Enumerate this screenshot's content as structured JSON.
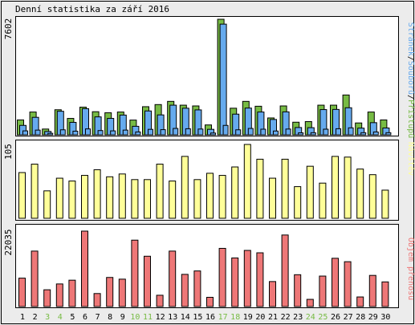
{
  "title": "Denní statistika za září 2016",
  "colors": {
    "background": "#ececec",
    "panel": "#ffffff",
    "border": "#000000",
    "pages": "#66aaee",
    "files": "#77bb44",
    "visits": "#ffff99",
    "traffic": "#ee7777",
    "weekend_label": "#77bb44",
    "weekday_label": "#000000"
  },
  "chart_data": [
    {
      "type": "bar",
      "panel": "top",
      "ymax_label": "7602",
      "ylim": [
        0,
        7602
      ],
      "legend": {
        "placement": "right",
        "separator": "/",
        "items": [
          {
            "text": "Stránek",
            "color": "#66aaee"
          },
          {
            "text": "Souborů",
            "color": "#66aaee"
          },
          {
            "text": "Přístupů",
            "color": "#77bb44"
          }
        ]
      },
      "categories": [
        "1",
        "2",
        "3",
        "4",
        "5",
        "6",
        "7",
        "8",
        "9",
        "10",
        "11",
        "12",
        "13",
        "14",
        "15",
        "16",
        "17",
        "18",
        "19",
        "20",
        "21",
        "22",
        "23",
        "24",
        "25",
        "26",
        "27",
        "28",
        "29",
        "30"
      ],
      "series": [
        {
          "name": "Přístupů",
          "color": "#77bb44",
          "values": [
            980,
            1500,
            380,
            1650,
            1080,
            1820,
            1520,
            1450,
            1500,
            970,
            1850,
            1990,
            2200,
            1950,
            1900,
            650,
            7602,
            1750,
            2200,
            1880,
            1110,
            1900,
            830,
            870,
            1950,
            1950,
            2620,
            780,
            1500,
            980
          ]
        },
        {
          "name": "Souborů",
          "color": "#66aaee",
          "values": [
            620,
            1150,
            220,
            1550,
            820,
            1720,
            1180,
            1080,
            1300,
            560,
            1570,
            1310,
            1950,
            1750,
            1640,
            360,
            7280,
            1360,
            1760,
            1500,
            1010,
            1510,
            480,
            470,
            1660,
            1670,
            1780,
            440,
            800,
            450
          ]
        },
        {
          "name": "Stránek",
          "color": "#66aaee",
          "values": [
            260,
            310,
            100,
            330,
            240,
            390,
            280,
            260,
            310,
            190,
            360,
            340,
            420,
            400,
            380,
            120,
            620,
            330,
            420,
            370,
            250,
            380,
            130,
            140,
            370,
            400,
            460,
            140,
            190,
            140
          ]
        }
      ]
    },
    {
      "type": "bar",
      "panel": "middle",
      "ymax_label": "105",
      "ylim": [
        0,
        105
      ],
      "legend": {
        "placement": "right",
        "items": [
          {
            "text": "Návštěv",
            "color": "#ffff99"
          }
        ]
      },
      "categories": [
        "1",
        "2",
        "3",
        "4",
        "5",
        "6",
        "7",
        "8",
        "9",
        "10",
        "11",
        "12",
        "13",
        "14",
        "15",
        "16",
        "17",
        "18",
        "19",
        "20",
        "21",
        "22",
        "23",
        "24",
        "25",
        "26",
        "27",
        "28",
        "29",
        "30"
      ],
      "series": [
        {
          "name": "Návštěv",
          "color": "#ffff99",
          "values": [
            65,
            77,
            39,
            57,
            53,
            61,
            69,
            59,
            63,
            55,
            55,
            77,
            53,
            88,
            55,
            64,
            61,
            73,
            105,
            84,
            57,
            84,
            45,
            74,
            50,
            88,
            87,
            70,
            62,
            40
          ]
        }
      ]
    },
    {
      "type": "bar",
      "panel": "bottom",
      "ymax_label": "22035",
      "ylim": [
        0,
        22035
      ],
      "legend": {
        "placement": "right",
        "items": [
          {
            "text": "Objem přenosu",
            "color": "#ee7777"
          }
        ]
      },
      "categories": [
        "1",
        "2",
        "3",
        "4",
        "5",
        "6",
        "7",
        "8",
        "9",
        "10",
        "11",
        "12",
        "13",
        "14",
        "15",
        "16",
        "17",
        "18",
        "19",
        "20",
        "21",
        "22",
        "23",
        "24",
        "25",
        "26",
        "27",
        "28",
        "29",
        "30"
      ],
      "x_label_colors": [
        "#000000",
        "#000000",
        "#77bb44",
        "#77bb44",
        "#000000",
        "#000000",
        "#000000",
        "#000000",
        "#000000",
        "#77bb44",
        "#77bb44",
        "#000000",
        "#000000",
        "#000000",
        "#000000",
        "#000000",
        "#77bb44",
        "#77bb44",
        "#000000",
        "#000000",
        "#000000",
        "#000000",
        "#000000",
        "#77bb44",
        "#77bb44",
        "#000000",
        "#000000",
        "#000000",
        "#000000",
        "#000000"
      ],
      "series": [
        {
          "name": "Objem přenosu",
          "color": "#ee7777",
          "values": [
            8300,
            16200,
            4900,
            6600,
            7700,
            22035,
            3800,
            8500,
            8000,
            19400,
            14700,
            3300,
            16200,
            9400,
            10400,
            2700,
            17000,
            14200,
            16400,
            15700,
            7300,
            20900,
            9300,
            2100,
            8900,
            14100,
            13100,
            2800,
            9100,
            7200
          ]
        }
      ]
    }
  ]
}
